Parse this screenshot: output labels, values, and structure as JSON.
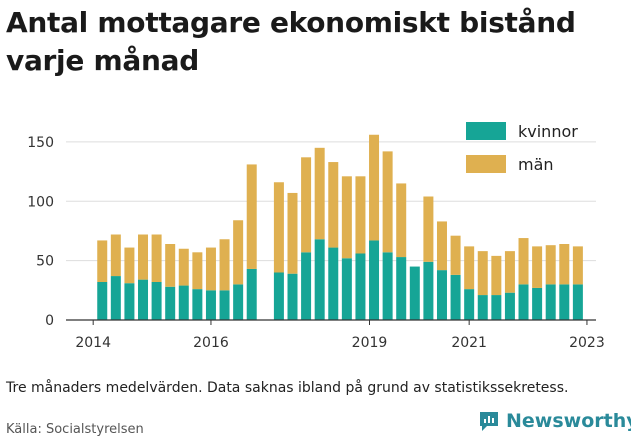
{
  "title": "Antal mottagare ekonomiskt bistånd varje månad",
  "note": "Tre månaders medelvärden. Data saknas ibland på grund av statistikssekretess.",
  "source": "Källa: Socialstyrelsen",
  "brand": "Newsworthy",
  "colors": {
    "kvinnor": "#16a596",
    "man": "#dfb050",
    "axis": "#333333",
    "grid": "#dddddd",
    "brand": "#2a8a9a"
  },
  "chart_data": {
    "type": "bar",
    "stacked": true,
    "x_ticks": [
      "2014",
      "2016",
      "2019",
      "2021",
      "2023"
    ],
    "y_ticks": [
      "0",
      "50",
      "100",
      "150"
    ],
    "ylim": [
      0,
      160
    ],
    "legend_position": "top-right",
    "categories": [
      "2014-07",
      "2014-10",
      "2015-01",
      "2015-04",
      "2015-07",
      "2015-10",
      "2016-01",
      "2016-04",
      "2016-07",
      "2016-10",
      "2017-01",
      "2017-04",
      "2017-10",
      "2018-01",
      "2018-04",
      "2018-07",
      "2018-10",
      "2019-01",
      "2019-04",
      "2019-07",
      "2019-10",
      "2020-01",
      "2020-04",
      "2020-07",
      "2020-10",
      "2021-01",
      "2021-04",
      "2021-07",
      "2021-10",
      "2022-01",
      "2022-04",
      "2022-07",
      "2022-10",
      "2023-01",
      "2023-04"
    ],
    "series": [
      {
        "name": "kvinnor",
        "values": [
          32,
          37,
          31,
          34,
          32,
          28,
          29,
          26,
          25,
          25,
          30,
          43,
          40,
          39,
          57,
          68,
          61,
          52,
          56,
          67,
          57,
          53,
          45,
          49,
          42,
          38,
          26,
          21,
          21,
          23,
          30,
          27,
          30,
          30,
          30
        ]
      },
      {
        "name": "män",
        "values": [
          35,
          35,
          30,
          38,
          40,
          36,
          31,
          31,
          36,
          43,
          54,
          88,
          76,
          68,
          80,
          77,
          72,
          69,
          65,
          89,
          85,
          62,
          0,
          55,
          41,
          33,
          36,
          37,
          33,
          35,
          39,
          35,
          33,
          34,
          32
        ]
      }
    ]
  }
}
